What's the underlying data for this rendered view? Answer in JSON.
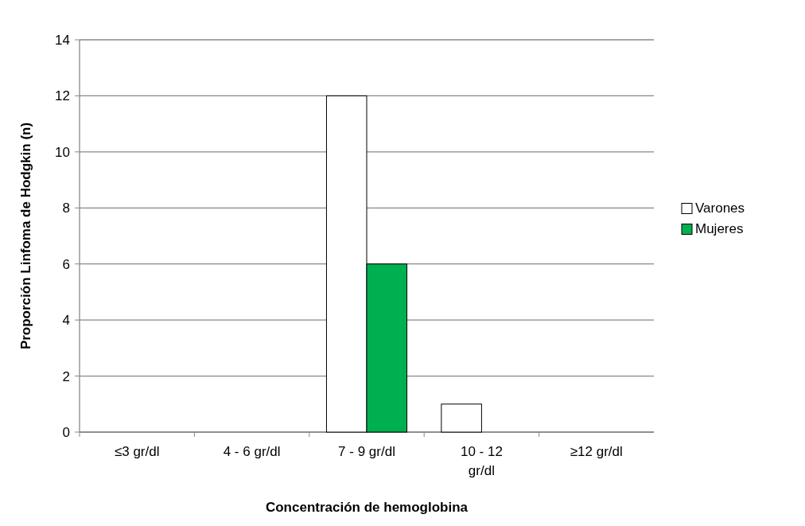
{
  "chart_data": {
    "type": "bar",
    "xlabel": "Concentración de hemoglobina",
    "ylabel": "Proporción Linfoma de Hodgkin (n)",
    "categories": [
      "≤3 gr/dl",
      "4 - 6 gr/dl",
      "7 - 9 gr/dl",
      "10 - 12 gr/dl",
      "≥12 gr/dl"
    ],
    "series": [
      {
        "name": "Varones",
        "color": "#ffffff",
        "values": [
          0,
          0,
          12,
          1,
          0
        ]
      },
      {
        "name": "Mujeres",
        "color": "#00b050",
        "values": [
          0,
          0,
          6,
          0,
          0
        ]
      }
    ],
    "ylim": [
      0,
      14
    ],
    "yticks": [
      0,
      2,
      4,
      6,
      8,
      10,
      12,
      14
    ],
    "grid": "y",
    "legend": "right"
  }
}
